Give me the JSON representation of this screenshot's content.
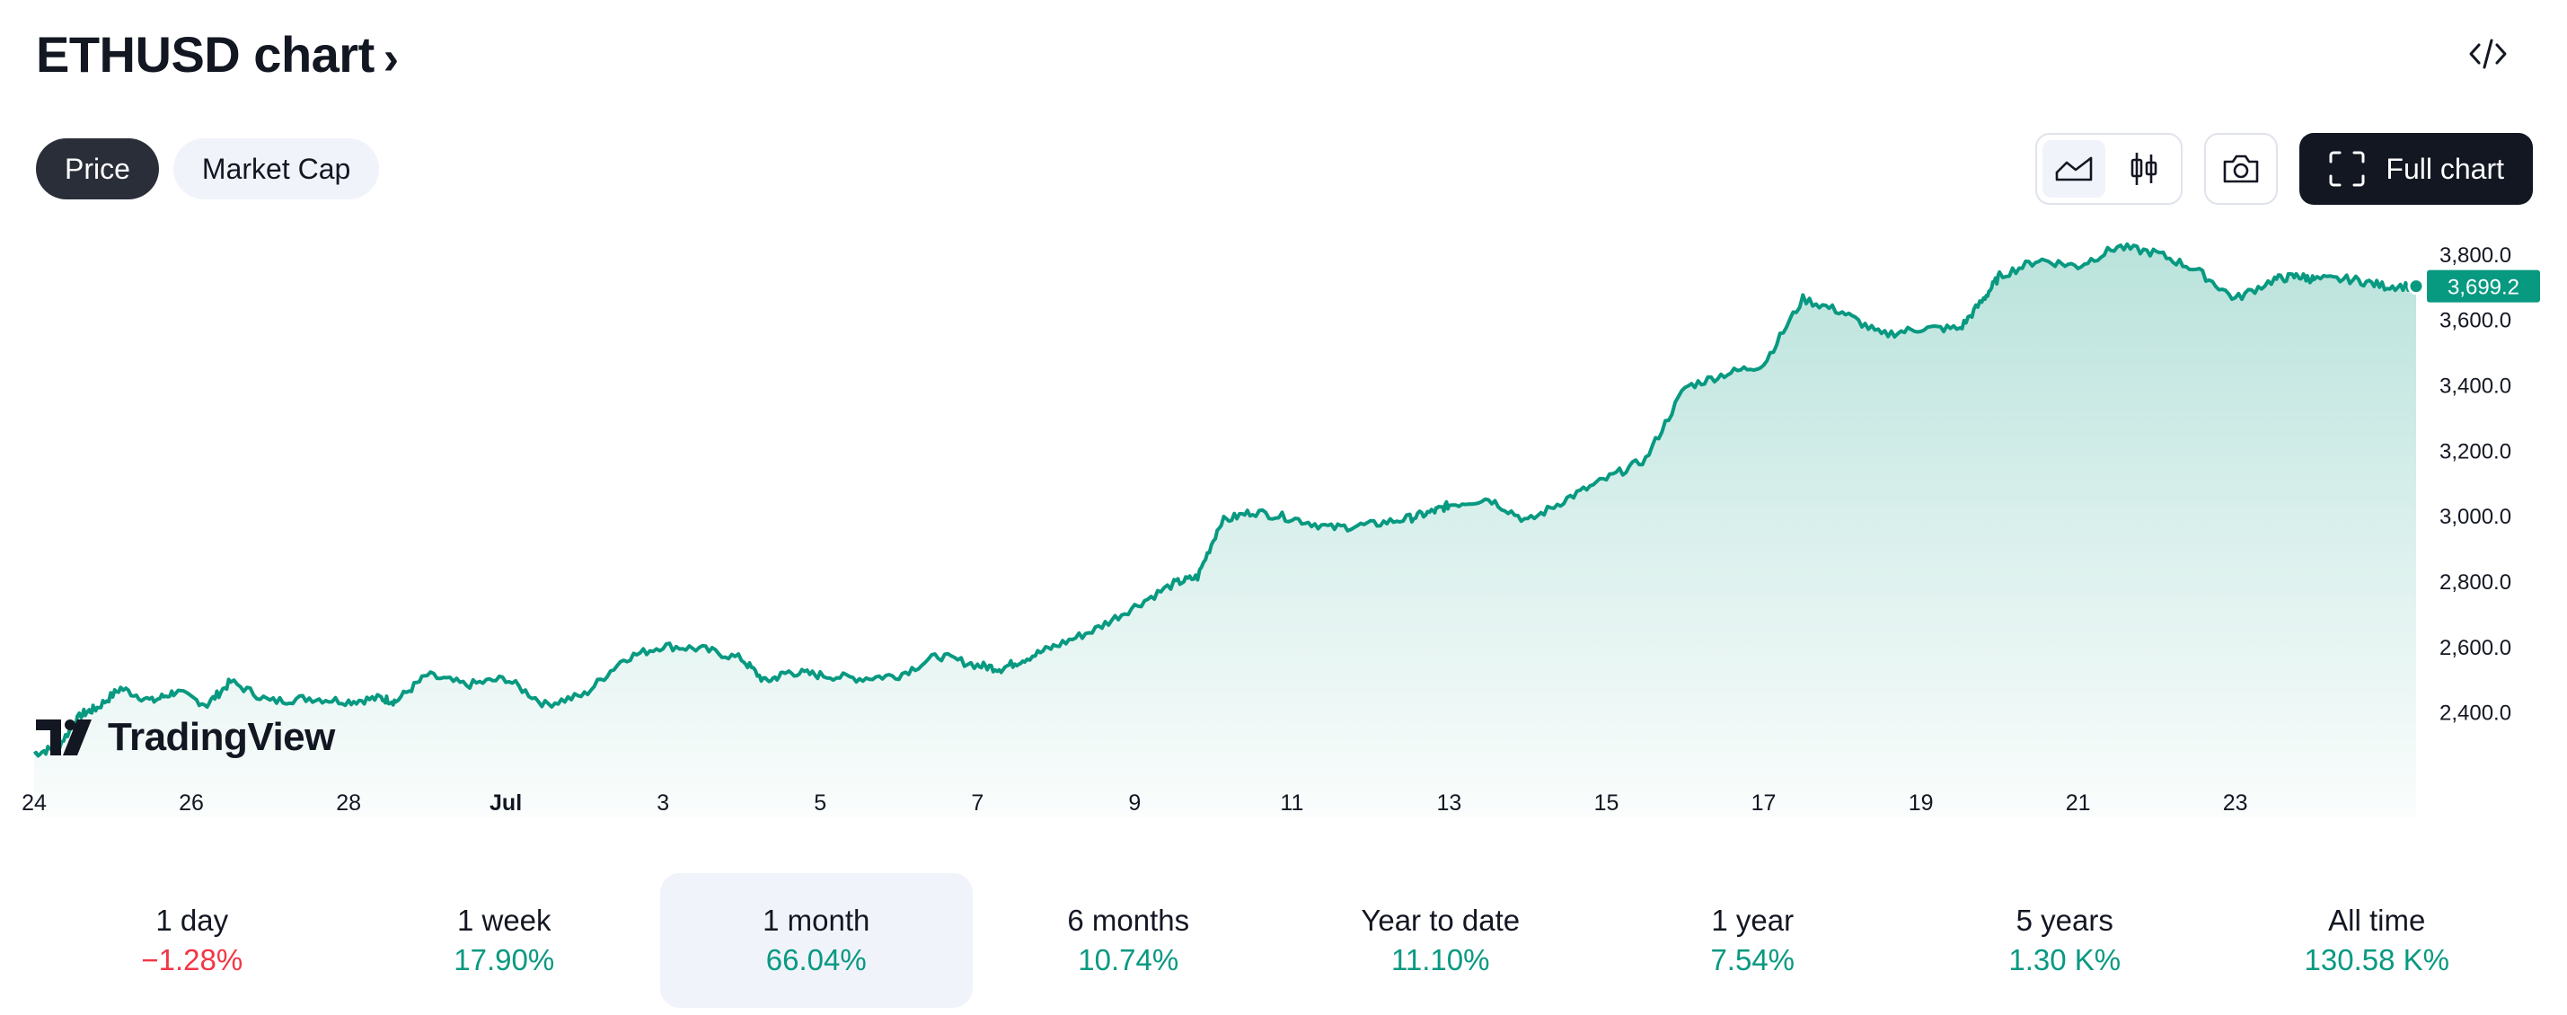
{
  "header": {
    "title": "ETHUSD chart",
    "chevron": "›",
    "embed_icon": "code-embed-icon"
  },
  "tabs": [
    {
      "label": "Price",
      "active": true
    },
    {
      "label": "Market Cap",
      "active": false
    }
  ],
  "toolbar": {
    "area_icon": "area-chart-icon",
    "candles_icon": "candlestick-icon",
    "camera_icon": "camera-icon",
    "full_chart_label": "Full chart",
    "full_chart_icon": "fullscreen-icon"
  },
  "branding": {
    "logo_text": "TradingView"
  },
  "colors": {
    "accent": "#089981",
    "negative": "#f23645",
    "dark": "#131722"
  },
  "chart_data": {
    "type": "area",
    "title": "",
    "xlabel": "",
    "ylabel": "",
    "x_ticks": [
      "24",
      "26",
      "28",
      "Jul",
      "3",
      "5",
      "7",
      "9",
      "11",
      "13",
      "15",
      "17",
      "19",
      "21",
      "23"
    ],
    "y_ticks": [
      "3,800.0",
      "3,600.0",
      "3,400.0",
      "3,200.0",
      "3,000.0",
      "2,800.0",
      "2,600.0",
      "2,400.0"
    ],
    "ylim": [
      2240,
      3860
    ],
    "x_range_days": [
      0,
      30.3
    ],
    "last_price_label": "3,699.2",
    "last_price": 3699.2,
    "grid": false,
    "series": [
      {
        "x": [
          0.0,
          0.3,
          0.6,
          0.8,
          1.1,
          1.5,
          1.8,
          2.2,
          2.5,
          3.0,
          3.5,
          4.0,
          4.4,
          4.6,
          5.0,
          5.5,
          6.0,
          6.5,
          7.0,
          7.5,
          8.0,
          8.5,
          9.0,
          9.3,
          9.6,
          10.0,
          10.5,
          11.0,
          11.5,
          12.0,
          12.3,
          12.6,
          13.0,
          13.5,
          14.0,
          14.5,
          14.8,
          15.1,
          15.5,
          16.0,
          16.5,
          17.0,
          17.5,
          17.8,
          18.0,
          18.5,
          19.0,
          19.5,
          20.0,
          20.5,
          21.0,
          21.5,
          22.0,
          22.5,
          23.0,
          23.5,
          24.0,
          24.5,
          24.8,
          25.0,
          25.5,
          26.0,
          26.5,
          27.0,
          27.5,
          28.0,
          28.5,
          28.8,
          29.0,
          29.5,
          29.9,
          30.3
        ],
        "y": [
          2270,
          2290,
          2390,
          2410,
          2470,
          2430,
          2460,
          2420,
          2490,
          2430,
          2440,
          2430,
          2440,
          2430,
          2510,
          2480,
          2500,
          2420,
          2450,
          2560,
          2600,
          2590,
          2560,
          2490,
          2520,
          2510,
          2500,
          2510,
          2570,
          2540,
          2530,
          2560,
          2600,
          2650,
          2720,
          2790,
          2810,
          2980,
          3010,
          2990,
          2960,
          2970,
          2990,
          3010,
          3030,
          3050,
          2980,
          3050,
          3110,
          3170,
          3390,
          3430,
          3460,
          3660,
          3620,
          3550,
          3570,
          3570,
          3660,
          3730,
          3780,
          3760,
          3820,
          3800,
          3750,
          3660,
          3720,
          3730,
          3720,
          3720,
          3699.2,
          3699.2
        ],
        "color": "#089981"
      }
    ],
    "legend": "none"
  },
  "ranges": [
    {
      "label": "1 day",
      "value": "−1.28%",
      "trend": "down",
      "active": false
    },
    {
      "label": "1 week",
      "value": "17.90%",
      "trend": "up",
      "active": false
    },
    {
      "label": "1 month",
      "value": "66.04%",
      "trend": "up",
      "active": true
    },
    {
      "label": "6 months",
      "value": "10.74%",
      "trend": "up",
      "active": false
    },
    {
      "label": "Year to date",
      "value": "11.10%",
      "trend": "up",
      "active": false
    },
    {
      "label": "1 year",
      "value": "7.54%",
      "trend": "up",
      "active": false
    },
    {
      "label": "5 years",
      "value": "1.30 K%",
      "trend": "up",
      "active": false
    },
    {
      "label": "All time",
      "value": "130.58 K%",
      "trend": "up",
      "active": false
    }
  ]
}
